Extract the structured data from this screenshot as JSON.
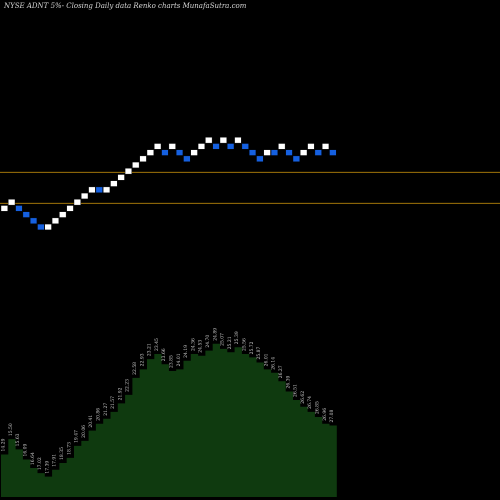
{
  "title": "NYSE ADNT 5%-  Closing Daily data  Renko  charts MunafaSutra.com",
  "colors": {
    "background": "#000000",
    "up_brick": "#ffffff",
    "down_brick": "#1560e0",
    "level_line": "#b8860b",
    "volume_fill": "#0f3a0f",
    "label_text": "#cfcfcf"
  },
  "chart_data": {
    "type": "renko",
    "brick_size_percent": 5,
    "levels": [
      1,
      6
    ],
    "bricks": [
      {
        "level": 0,
        "dir": "up"
      },
      {
        "level": 1,
        "dir": "up"
      },
      {
        "level": 0,
        "dir": "down"
      },
      {
        "level": -1,
        "dir": "down"
      },
      {
        "level": -2,
        "dir": "down"
      },
      {
        "level": -3,
        "dir": "down"
      },
      {
        "level": -3,
        "dir": "up"
      },
      {
        "level": -2,
        "dir": "up"
      },
      {
        "level": -1,
        "dir": "up"
      },
      {
        "level": 0,
        "dir": "up"
      },
      {
        "level": 1,
        "dir": "up"
      },
      {
        "level": 2,
        "dir": "up"
      },
      {
        "level": 3,
        "dir": "up"
      },
      {
        "level": 3,
        "dir": "down"
      },
      {
        "level": 3,
        "dir": "up"
      },
      {
        "level": 4,
        "dir": "up"
      },
      {
        "level": 5,
        "dir": "up"
      },
      {
        "level": 6,
        "dir": "up"
      },
      {
        "level": 7,
        "dir": "up"
      },
      {
        "level": 8,
        "dir": "up"
      },
      {
        "level": 9,
        "dir": "up"
      },
      {
        "level": 10,
        "dir": "up"
      },
      {
        "level": 9,
        "dir": "down"
      },
      {
        "level": 10,
        "dir": "up"
      },
      {
        "level": 9,
        "dir": "down"
      },
      {
        "level": 8,
        "dir": "down"
      },
      {
        "level": 9,
        "dir": "up"
      },
      {
        "level": 10,
        "dir": "up"
      },
      {
        "level": 11,
        "dir": "up"
      },
      {
        "level": 10,
        "dir": "down"
      },
      {
        "level": 11,
        "dir": "up"
      },
      {
        "level": 10,
        "dir": "down"
      },
      {
        "level": 11,
        "dir": "up"
      },
      {
        "level": 10,
        "dir": "down"
      },
      {
        "level": 9,
        "dir": "down"
      },
      {
        "level": 8,
        "dir": "down"
      },
      {
        "level": 9,
        "dir": "up"
      },
      {
        "level": 9,
        "dir": "down"
      },
      {
        "level": 10,
        "dir": "up"
      },
      {
        "level": 9,
        "dir": "down"
      },
      {
        "level": 8,
        "dir": "down"
      },
      {
        "level": 9,
        "dir": "up"
      },
      {
        "level": 10,
        "dir": "up"
      },
      {
        "level": 9,
        "dir": "down"
      },
      {
        "level": 10,
        "dir": "up"
      },
      {
        "level": 9,
        "dir": "down"
      }
    ],
    "volume_labels": [
      "14.29",
      "15.50",
      "15.63",
      "16.09",
      "16.64",
      "17.02",
      "17.39",
      "17.91",
      "18.35",
      "18.73",
      "19.47",
      "20.06",
      "20.41",
      "20.86",
      "21.27",
      "21.57",
      "21.92",
      "22.23",
      "22.58",
      "22.93",
      "23.21",
      "23.45",
      "23.66",
      "23.85",
      "24.01",
      "24.19",
      "24.36",
      "24.53",
      "24.70",
      "24.89",
      "25.07",
      "25.21",
      "25.39",
      "25.56",
      "25.72",
      "25.87",
      "26.01",
      "26.14",
      "26.27",
      "26.39",
      "26.51",
      "26.62",
      "26.74",
      "26.85",
      "26.96",
      "27.08"
    ],
    "volume_relative": [
      0.25,
      0.34,
      0.28,
      0.22,
      0.17,
      0.14,
      0.12,
      0.16,
      0.2,
      0.23,
      0.3,
      0.33,
      0.39,
      0.43,
      0.46,
      0.5,
      0.55,
      0.6,
      0.7,
      0.75,
      0.81,
      0.84,
      0.78,
      0.74,
      0.75,
      0.8,
      0.84,
      0.83,
      0.86,
      0.9,
      0.87,
      0.85,
      0.88,
      0.84,
      0.82,
      0.79,
      0.75,
      0.73,
      0.68,
      0.62,
      0.57,
      0.53,
      0.5,
      0.47,
      0.43,
      0.42
    ]
  }
}
